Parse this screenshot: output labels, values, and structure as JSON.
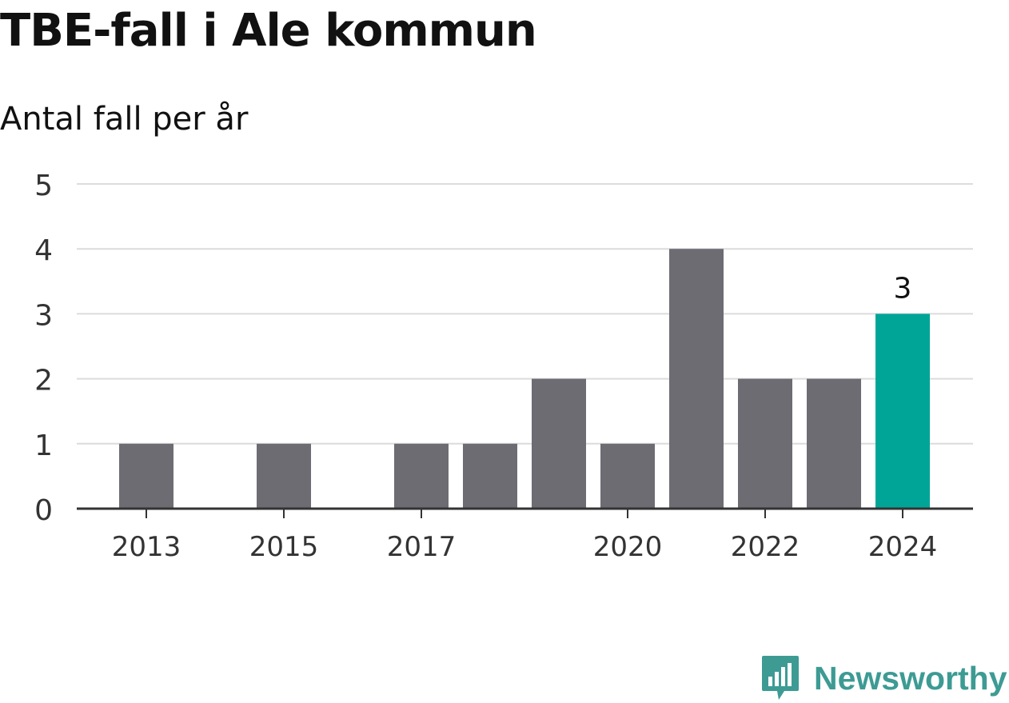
{
  "title": "TBE-fall i Ale kommun",
  "subtitle": "Antal fall per år",
  "brand": {
    "name": "Newsworthy",
    "logo_icon": "newsworthy-logo-icon",
    "color": "#3d9b94"
  },
  "colors": {
    "bar": "#6d6c72",
    "highlight": "#00a598",
    "grid": "#dcdcdc",
    "axis": "#333333",
    "tick_text": "#333333",
    "label_text": "#111111"
  },
  "chart_data": {
    "type": "bar",
    "categories": [
      "2013",
      "2014",
      "2015",
      "2016",
      "2017",
      "2018",
      "2019",
      "2020",
      "2021",
      "2022",
      "2023",
      "2024"
    ],
    "values": [
      1,
      0,
      1,
      0,
      1,
      1,
      2,
      1,
      4,
      2,
      2,
      3
    ],
    "highlight_index": 11,
    "x_tick_labels": [
      "2013",
      "2015",
      "2017",
      "2020",
      "2022",
      "2024"
    ],
    "y_ticks": [
      0,
      1,
      2,
      3,
      4,
      5
    ],
    "ylim": [
      0,
      5
    ],
    "grid": true,
    "data_labels": [
      {
        "index": 11,
        "text": "3"
      }
    ],
    "title": "TBE-fall i Ale kommun",
    "ylabel": "",
    "xlabel": ""
  }
}
